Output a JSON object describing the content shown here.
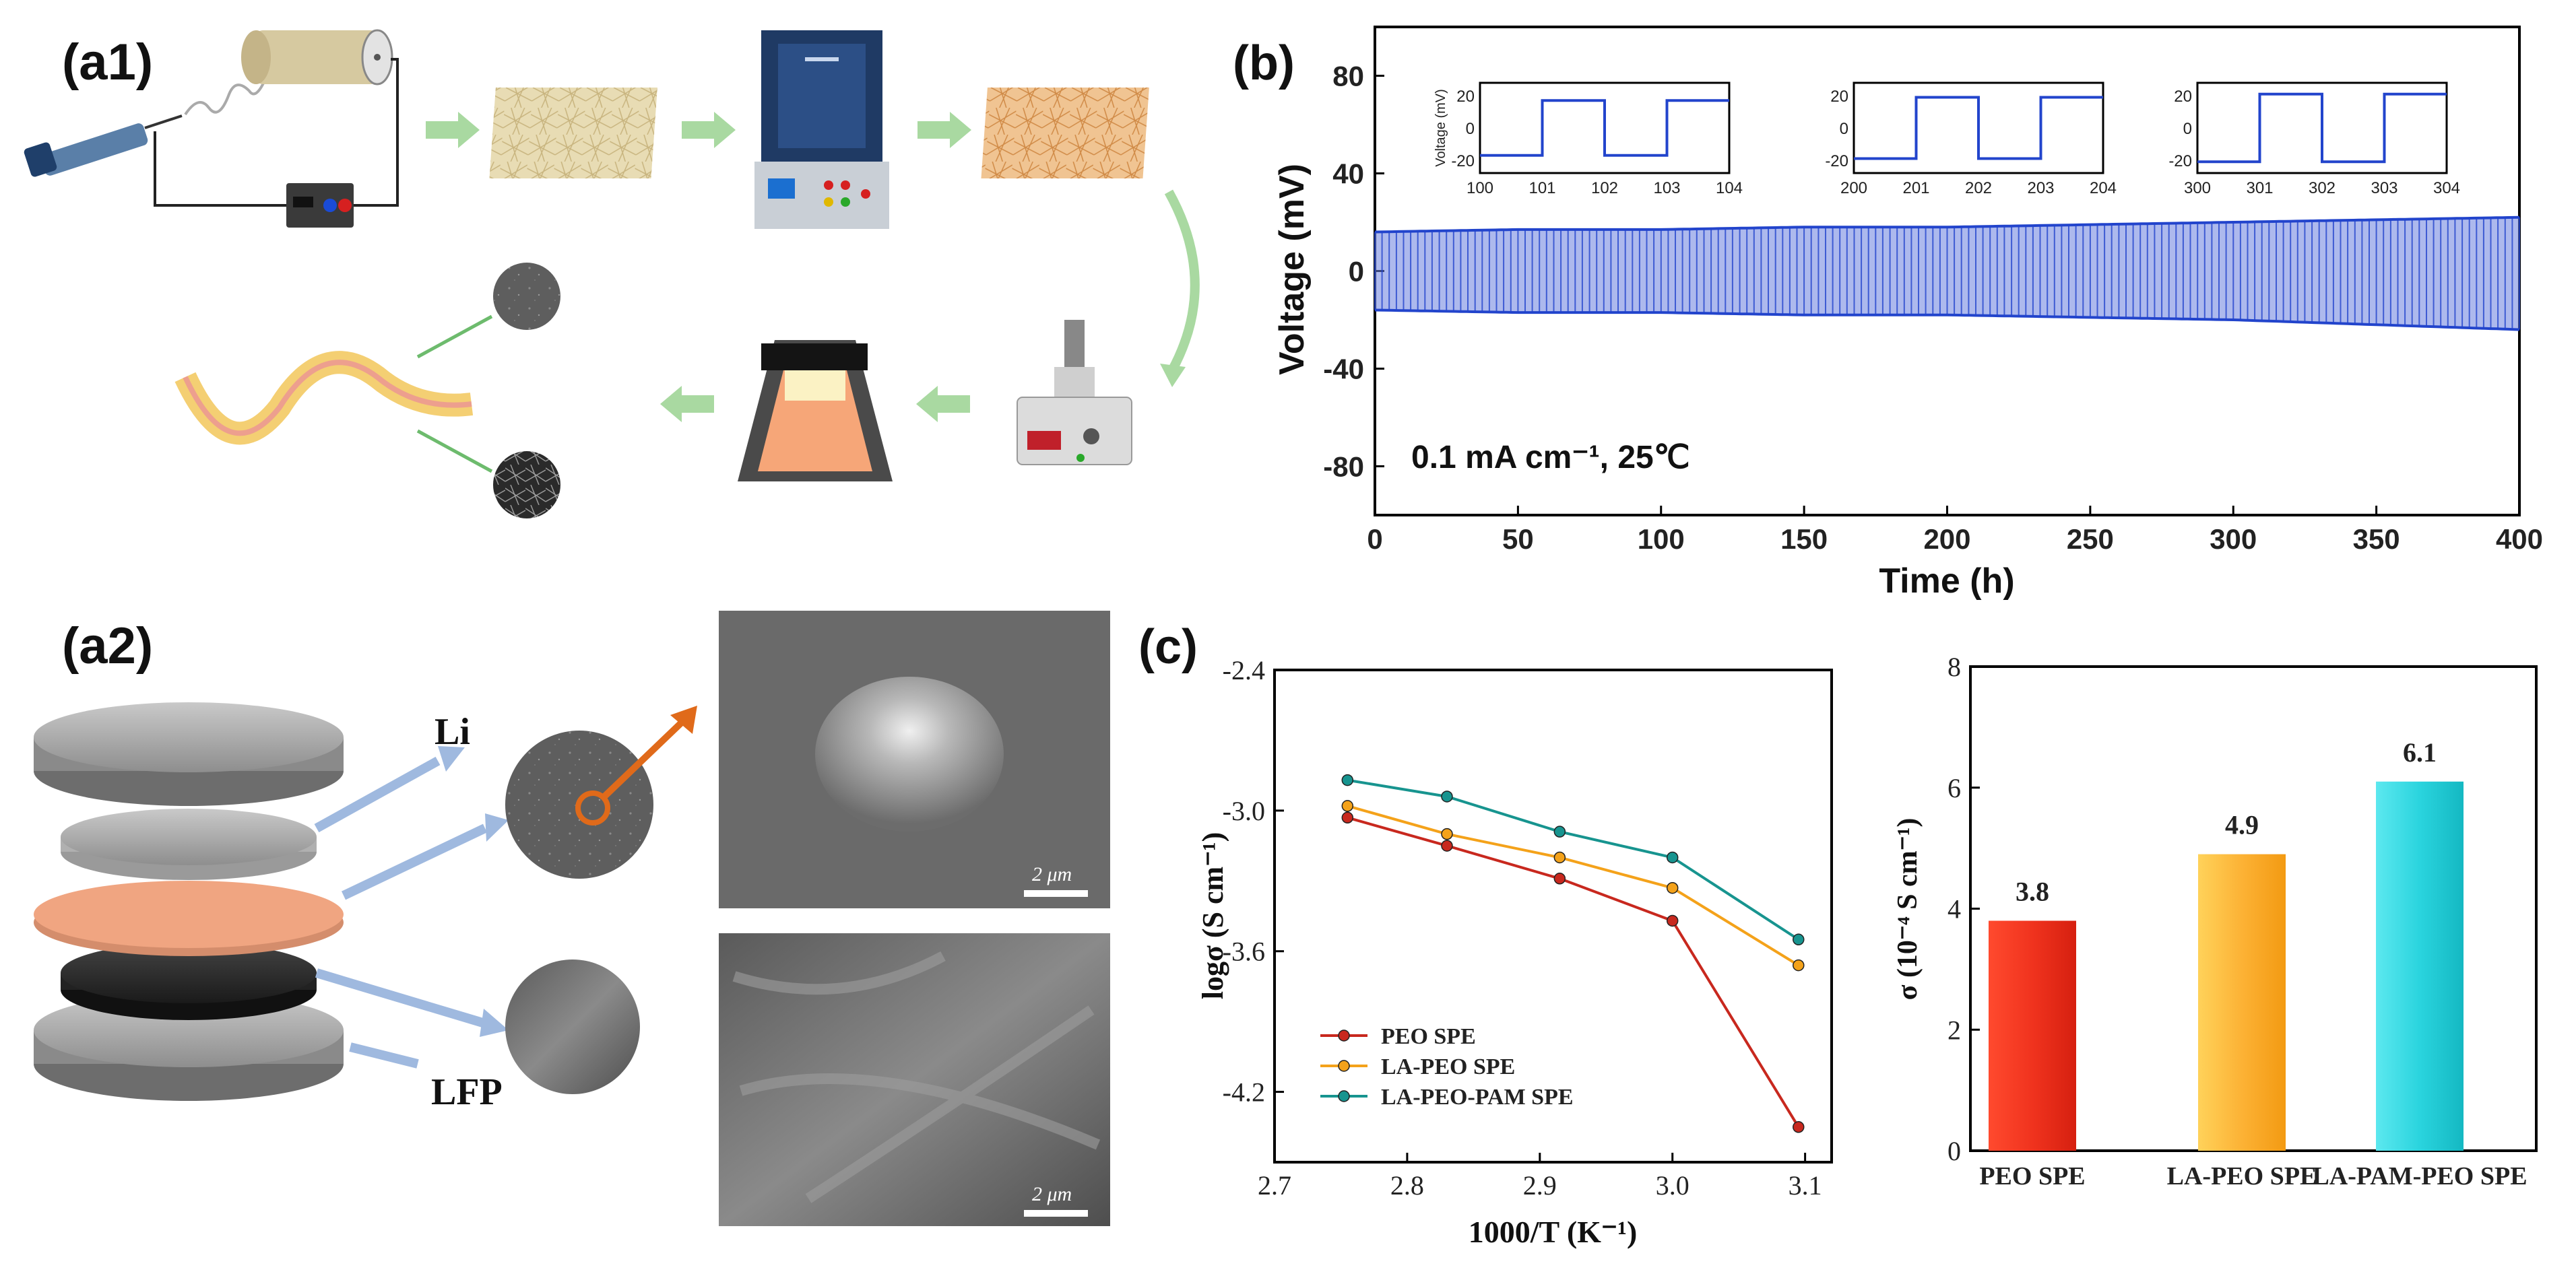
{
  "panels": {
    "a1": "(a1)",
    "a2": "(a2)",
    "b": "(b)",
    "c": "(c)"
  },
  "a2_labels": {
    "li": "Li",
    "lfp": "LFP",
    "scale_top": "2 μm",
    "scale_bottom": "2 μm"
  },
  "colors": {
    "blue": "#2244cc",
    "red": "#c8281e",
    "orange": "#f4a21a",
    "teal": "#17948f",
    "bar_red": "#f0331e",
    "bar_orange": "#fcb235",
    "bar_cyan": "#2ad4de"
  },
  "chart_data": [
    {
      "type": "line",
      "panel": "(b)",
      "xlabel": "Time (h)",
      "ylabel": "Voltage (mV)",
      "xlim": [
        0,
        400
      ],
      "ylim": [
        -100,
        100
      ],
      "xticks": [
        0,
        50,
        100,
        150,
        200,
        250,
        300,
        350,
        400
      ],
      "yticks": [
        -80,
        -40,
        0,
        40,
        80
      ],
      "annotation": "0.1 mA cm⁻¹, 25℃",
      "series": [
        {
          "x": [
            0,
            50,
            100,
            150,
            200,
            250,
            300,
            350,
            400
          ],
          "upper": [
            16,
            17,
            17,
            18,
            18,
            19,
            20,
            21,
            22
          ],
          "lower": [
            -16,
            -17,
            -17,
            -18,
            -18,
            -19,
            -20,
            -22,
            -24
          ]
        }
      ],
      "insets": [
        {
          "xticks": [
            100,
            101,
            102,
            103,
            104
          ],
          "yticks": [
            -20,
            0,
            20
          ],
          "ylabel": "Voltage (mV)",
          "xlim": [
            100,
            104
          ],
          "ylim": [
            -28,
            28
          ],
          "amplitude": 17
        },
        {
          "xticks": [
            200,
            201,
            202,
            203,
            204
          ],
          "yticks": [
            -20,
            0,
            20
          ],
          "xlim": [
            200,
            204
          ],
          "ylim": [
            -28,
            28
          ],
          "amplitude": 19
        },
        {
          "xticks": [
            300,
            301,
            302,
            303,
            304
          ],
          "yticks": [
            -20,
            0,
            20
          ],
          "xlim": [
            300,
            304
          ],
          "ylim": [
            -28,
            28
          ],
          "amplitude": 21
        }
      ]
    },
    {
      "type": "line",
      "panel": "(c)",
      "xlabel": "1000/T (K⁻¹)",
      "ylabel": "logσ (S cm⁻¹)",
      "xlim": [
        2.7,
        3.12
      ],
      "ylim": [
        -4.5,
        -2.4
      ],
      "xticks": [
        "2.7",
        "2.8",
        "2.9",
        "3.0",
        "3.1"
      ],
      "yticks": [
        "-2.4",
        "-3.0",
        "-3.6",
        "-4.2"
      ],
      "x": [
        2.755,
        2.83,
        2.915,
        3.0,
        3.095
      ],
      "series": [
        {
          "name": "PEO SPE",
          "values": [
            -3.03,
            -3.15,
            -3.29,
            -3.47,
            -4.35
          ]
        },
        {
          "name": "LA-PEO SPE",
          "values": [
            -2.98,
            -3.1,
            -3.2,
            -3.33,
            -3.66
          ]
        },
        {
          "name": "LA-PEO-PAM SPE",
          "values": [
            -2.87,
            -2.94,
            -3.09,
            -3.2,
            -3.55
          ]
        }
      ]
    },
    {
      "type": "bar",
      "panel": "(c)",
      "ylabel": "σ (10⁻⁴ S cm⁻¹)",
      "ylim": [
        0,
        8
      ],
      "yticks": [
        "0",
        "2",
        "4",
        "6",
        "8"
      ],
      "categories": [
        "PEO SPE",
        "LA-PEO SPE",
        "LA-PAM-PEO SPE"
      ],
      "values": [
        3.8,
        4.9,
        6.1
      ],
      "value_labels": [
        "3.8",
        "4.9",
        "6.1"
      ]
    }
  ]
}
